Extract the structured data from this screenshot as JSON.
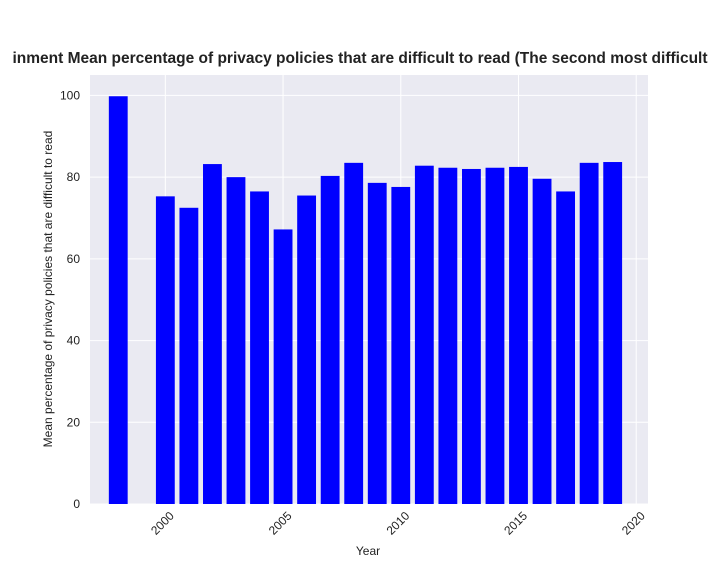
{
  "chart_data": {
    "type": "bar",
    "title": "inment Mean percentage of privacy policies that are difficult to read (The second most difficult",
    "xlabel": "Year",
    "ylabel": "Mean percentage of privacy policies that are difficult to read",
    "x": [
      1998,
      2000,
      2001,
      2002,
      2003,
      2004,
      2005,
      2006,
      2007,
      2008,
      2009,
      2010,
      2011,
      2012,
      2013,
      2014,
      2015,
      2016,
      2017,
      2018,
      2019
    ],
    "values": [
      99.8,
      75.3,
      72.5,
      83.2,
      80.0,
      76.5,
      67.2,
      75.5,
      80.3,
      83.5,
      78.6,
      77.6,
      82.8,
      82.3,
      82.0,
      82.3,
      82.5,
      79.6,
      76.5,
      83.5,
      83.7
    ],
    "xlim": [
      1996.8,
      2020.5
    ],
    "ylim": [
      0,
      105
    ],
    "xticks": [
      2000,
      2005,
      2010,
      2015,
      2020
    ],
    "yticks": [
      0,
      20,
      40,
      60,
      80,
      100
    ],
    "bar_color": "#0000ff",
    "background": "#eaeaf2",
    "grid": true
  }
}
